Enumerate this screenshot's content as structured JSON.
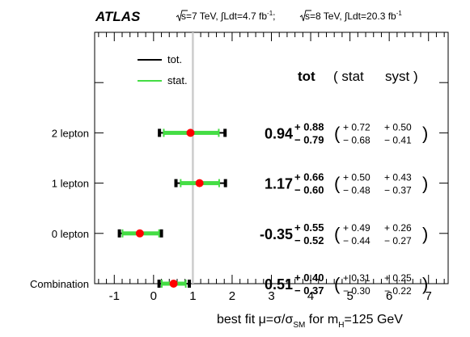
{
  "chart_data": {
    "type": "forest",
    "experiment": "ATLAS",
    "header": {
      "sqrt_s_7": "s=7 TeV, ∫Ldt=4.7 fb",
      "sqrt_s_8": "s=8 TeV, ∫Ldt=20.3 fb",
      "exponent": "-1",
      "separator": ";"
    },
    "xlabel": {
      "prefix": "best fit μ=σ/σ",
      "sub_sm": "SM",
      "mid": " for m",
      "sub_h": "H",
      "suffix": "=125 GeV"
    },
    "xlim": [
      -1.5,
      7.5
    ],
    "xticks": [
      "-1",
      "0",
      "1",
      "2",
      "3",
      "4",
      "5",
      "6",
      "7"
    ],
    "xtick_values": [
      -1,
      0,
      1,
      2,
      3,
      4,
      5,
      6,
      7
    ],
    "reference_line": 1,
    "legend": {
      "tot": "tot.",
      "stat": "stat."
    },
    "column_headers": {
      "tot": "tot",
      "stat": "( stat",
      "syst": "syst )"
    },
    "colors": {
      "total": "#000000",
      "stat": "#44dd44",
      "point": "#ff0000",
      "reference": "#cccccc"
    },
    "categories": [
      {
        "label": "2 lepton",
        "mu": 0.94,
        "mu_text": "0.94",
        "tot_up": "+ 0.88",
        "tot_down": "− 0.79",
        "stat_up": "+ 0.72",
        "stat_down": "− 0.68",
        "syst_up": "+ 0.50",
        "syst_down": "− 0.41",
        "tot_up_v": 0.88,
        "tot_down_v": 0.79,
        "stat_up_v": 0.72,
        "stat_down_v": 0.68
      },
      {
        "label": "1 lepton",
        "mu": 1.17,
        "mu_text": "1.17",
        "tot_up": "+ 0.66",
        "tot_down": "− 0.60",
        "stat_up": "+ 0.50",
        "stat_down": "− 0.48",
        "syst_up": "+ 0.43",
        "syst_down": "− 0.37",
        "tot_up_v": 0.66,
        "tot_down_v": 0.6,
        "stat_up_v": 0.5,
        "stat_down_v": 0.48
      },
      {
        "label": "0 lepton",
        "mu": -0.35,
        "mu_text": "-0.35",
        "tot_up": "+ 0.55",
        "tot_down": "− 0.52",
        "stat_up": "+ 0.49",
        "stat_down": "− 0.44",
        "syst_up": "+ 0.26",
        "syst_down": "− 0.27",
        "tot_up_v": 0.55,
        "tot_down_v": 0.52,
        "stat_up_v": 0.49,
        "stat_down_v": 0.44
      },
      {
        "label": "Combination",
        "mu": 0.51,
        "mu_text": "0.51",
        "tot_up": "+ 0.40",
        "tot_down": "− 0.37",
        "stat_up": "+ 0.31",
        "stat_down": "− 0.30",
        "syst_up": "+ 0.25",
        "syst_down": "− 0.22",
        "tot_up_v": 0.4,
        "tot_down_v": 0.37,
        "stat_up_v": 0.31,
        "stat_down_v": 0.3
      }
    ]
  }
}
